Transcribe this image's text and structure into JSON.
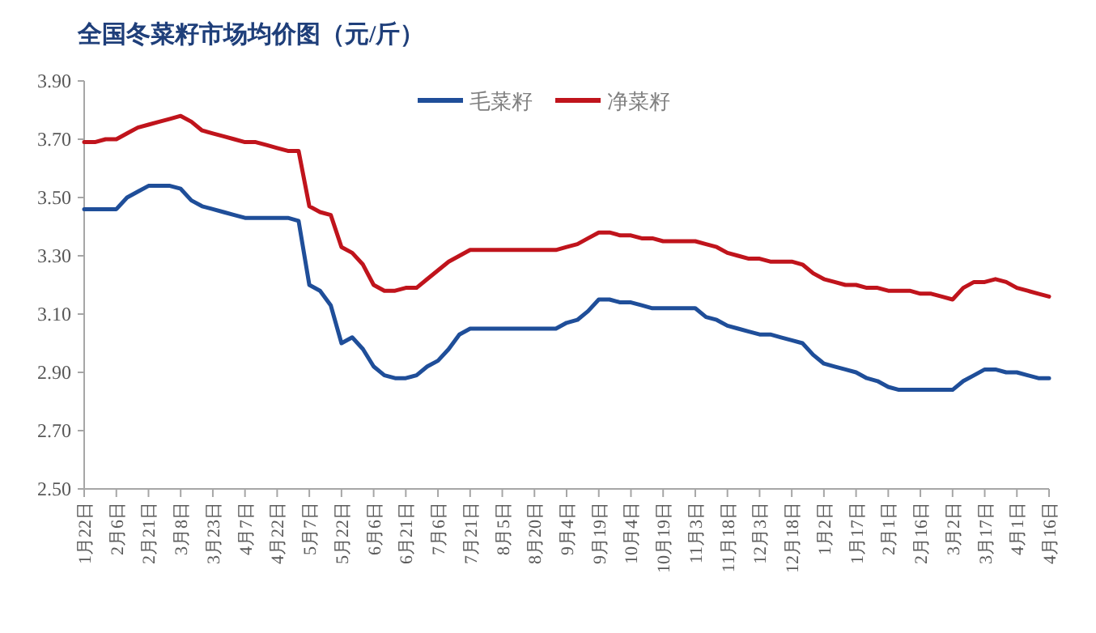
{
  "chart_data": {
    "type": "line",
    "title": "全国冬菜籽市场均价图（元/斤）",
    "categories": [
      "1月22日",
      null,
      null,
      "2月6日",
      null,
      null,
      "2月21日",
      null,
      null,
      "3月8日",
      null,
      null,
      "3月23日",
      null,
      null,
      "4月7日",
      null,
      null,
      "4月22日",
      null,
      null,
      "5月7日",
      null,
      null,
      "5月22日",
      null,
      null,
      "6月6日",
      null,
      null,
      "6月21日",
      null,
      null,
      "7月6日",
      null,
      null,
      "7月21日",
      null,
      null,
      "8月5日",
      null,
      null,
      "8月20日",
      null,
      null,
      "9月4日",
      null,
      null,
      "9月19日",
      null,
      null,
      "10月4日",
      null,
      null,
      "10月19日",
      null,
      null,
      "11月3日",
      null,
      null,
      "11月18日",
      null,
      null,
      "12月3日",
      null,
      null,
      "12月18日",
      null,
      null,
      "1月2日",
      null,
      null,
      "1月17日",
      null,
      null,
      "2月1日",
      null,
      null,
      "2月16日",
      null,
      null,
      "3月2日",
      null,
      null,
      "3月17日",
      null,
      null,
      "4月1日",
      null,
      null,
      "4月16日"
    ],
    "series": [
      {
        "name": "毛菜籽",
        "color": "#1f4e99",
        "values": [
          3.46,
          3.46,
          3.46,
          3.46,
          3.5,
          3.52,
          3.54,
          3.54,
          3.54,
          3.53,
          3.49,
          3.47,
          3.46,
          3.45,
          3.44,
          3.43,
          3.43,
          3.43,
          3.43,
          3.43,
          3.42,
          3.2,
          3.18,
          3.13,
          3.0,
          3.02,
          2.98,
          2.92,
          2.89,
          2.88,
          2.88,
          2.89,
          2.92,
          2.94,
          2.98,
          3.03,
          3.05,
          3.05,
          3.05,
          3.05,
          3.05,
          3.05,
          3.05,
          3.05,
          3.05,
          3.07,
          3.08,
          3.11,
          3.15,
          3.15,
          3.14,
          3.14,
          3.13,
          3.12,
          3.12,
          3.12,
          3.12,
          3.12,
          3.09,
          3.08,
          3.06,
          3.05,
          3.04,
          3.03,
          3.03,
          3.02,
          3.01,
          3.0,
          2.96,
          2.93,
          2.92,
          2.91,
          2.9,
          2.88,
          2.87,
          2.85,
          2.84,
          2.84,
          2.84,
          2.84,
          2.84,
          2.84,
          2.87,
          2.89,
          2.91,
          2.91,
          2.9,
          2.9,
          2.89,
          2.88,
          2.88
        ]
      },
      {
        "name": "净菜籽",
        "color": "#c0141c",
        "values": [
          3.69,
          3.69,
          3.7,
          3.7,
          3.72,
          3.74,
          3.75,
          3.76,
          3.77,
          3.78,
          3.76,
          3.73,
          3.72,
          3.71,
          3.7,
          3.69,
          3.69,
          3.68,
          3.67,
          3.66,
          3.66,
          3.47,
          3.45,
          3.44,
          3.33,
          3.31,
          3.27,
          3.2,
          3.18,
          3.18,
          3.19,
          3.19,
          3.22,
          3.25,
          3.28,
          3.3,
          3.32,
          3.32,
          3.32,
          3.32,
          3.32,
          3.32,
          3.32,
          3.32,
          3.32,
          3.33,
          3.34,
          3.36,
          3.38,
          3.38,
          3.37,
          3.37,
          3.36,
          3.36,
          3.35,
          3.35,
          3.35,
          3.35,
          3.34,
          3.33,
          3.31,
          3.3,
          3.29,
          3.29,
          3.28,
          3.28,
          3.28,
          3.27,
          3.24,
          3.22,
          3.21,
          3.2,
          3.2,
          3.19,
          3.19,
          3.18,
          3.18,
          3.18,
          3.17,
          3.17,
          3.16,
          3.15,
          3.19,
          3.21,
          3.21,
          3.22,
          3.21,
          3.19,
          3.18,
          3.17,
          3.16
        ]
      }
    ],
    "ylim": [
      2.5,
      3.9
    ],
    "yticks": [
      {
        "value": 2.5,
        "label": "2.50"
      },
      {
        "value": 2.7,
        "label": "2.70"
      },
      {
        "value": 2.9,
        "label": "2.90"
      },
      {
        "value": 3.1,
        "label": "3.10"
      },
      {
        "value": 3.3,
        "label": "3.30"
      },
      {
        "value": 3.5,
        "label": "3.50"
      },
      {
        "value": 3.7,
        "label": "3.70"
      },
      {
        "value": 3.9,
        "label": "3.90"
      }
    ],
    "grid": false,
    "legend": "top",
    "marker": "none",
    "line_style": "solid"
  }
}
